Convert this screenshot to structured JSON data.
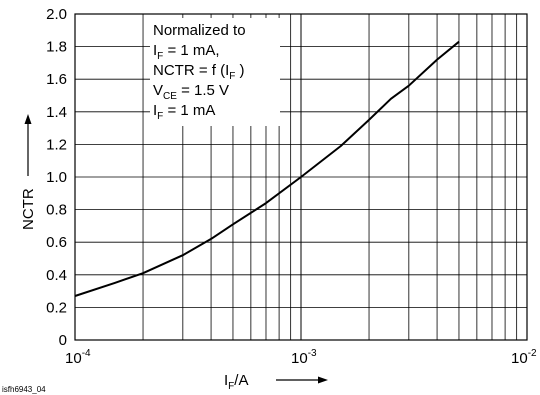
{
  "chart_data": {
    "type": "line",
    "x_scale": "log",
    "xlim": [
      0.0001,
      0.01
    ],
    "ylim": [
      0,
      2.0
    ],
    "y_ticks": [
      0,
      0.2,
      0.4,
      0.6,
      0.8,
      1.0,
      1.2,
      1.4,
      1.6,
      1.8,
      2.0
    ],
    "y_tick_labels": [
      "0",
      "0.2",
      "0.4",
      "0.6",
      "0.8",
      "1.0",
      "1.2",
      "1.4",
      "1.6",
      "1.8",
      "2.0"
    ],
    "x_tick_labels": [
      {
        "base": "10",
        "exp": "-4"
      },
      {
        "base": "10",
        "exp": "-3"
      },
      {
        "base": "10",
        "exp": "-2"
      }
    ],
    "ylabel": "NCTR",
    "xlabel": {
      "main": "I",
      "sub": "F",
      "rest": "/A"
    },
    "grid": true,
    "annotation": {
      "line1": "Normalized to",
      "line2": {
        "main": "I",
        "sub": "F",
        "rest": " = 1 mA,"
      },
      "line3": {
        "pre": "NCTR = f (I",
        "sub": "F",
        "post": " )"
      },
      "line4": {
        "main": "V",
        "sub": "CE",
        "rest": " = 1.5 V"
      },
      "line5": {
        "main": "I",
        "sub": "F",
        "rest": " = 1 mA"
      }
    },
    "figure_id": "isfh6943_04",
    "series": [
      {
        "x": [
          0.0001,
          0.00015,
          0.0002,
          0.0003,
          0.0004,
          0.0005,
          0.0007,
          0.001,
          0.0015,
          0.002,
          0.0025,
          0.003,
          0.004,
          0.005
        ],
        "y": [
          0.27,
          0.35,
          0.41,
          0.52,
          0.62,
          0.71,
          0.84,
          1.0,
          1.19,
          1.35,
          1.48,
          1.56,
          1.72,
          1.83
        ]
      }
    ]
  }
}
